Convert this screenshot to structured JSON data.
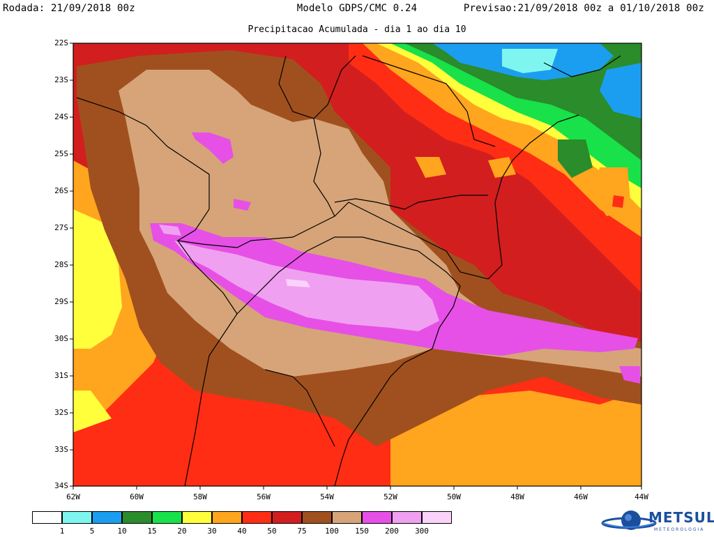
{
  "header": {
    "left": "Rodada: 21/09/2018 00z",
    "center": "Modelo GDPS/CMC 0.24",
    "right": "Previsao:21/09/2018 00z a 01/10/2018 00z"
  },
  "subtitle": "Precipitacao Acumulada - dia 1 ao dia 10",
  "lat_labels": [
    "22S",
    "23S",
    "24S",
    "25S",
    "26S",
    "27S",
    "28S",
    "29S",
    "30S",
    "31S",
    "32S",
    "33S",
    "34S"
  ],
  "lon_labels": [
    "62W",
    "60W",
    "58W",
    "56W",
    "54W",
    "52W",
    "50W",
    "48W",
    "46W",
    "44W"
  ],
  "legend": {
    "values": [
      "1",
      "5",
      "10",
      "15",
      "20",
      "30",
      "40",
      "50",
      "75",
      "100",
      "150",
      "200",
      "300"
    ],
    "colors": [
      "#ffffff",
      "#7ff5ef",
      "#1b9ef0",
      "#2a8c2a",
      "#18e14a",
      "#ffff3c",
      "#ffa51e",
      "#ff2d14",
      "#d21e1e",
      "#a0501e",
      "#d6a478",
      "#e650e6",
      "#f0a0f0",
      "#fad2fa"
    ]
  },
  "logo": {
    "name": "METSUL",
    "sub": "METEOROLOGIA"
  }
}
